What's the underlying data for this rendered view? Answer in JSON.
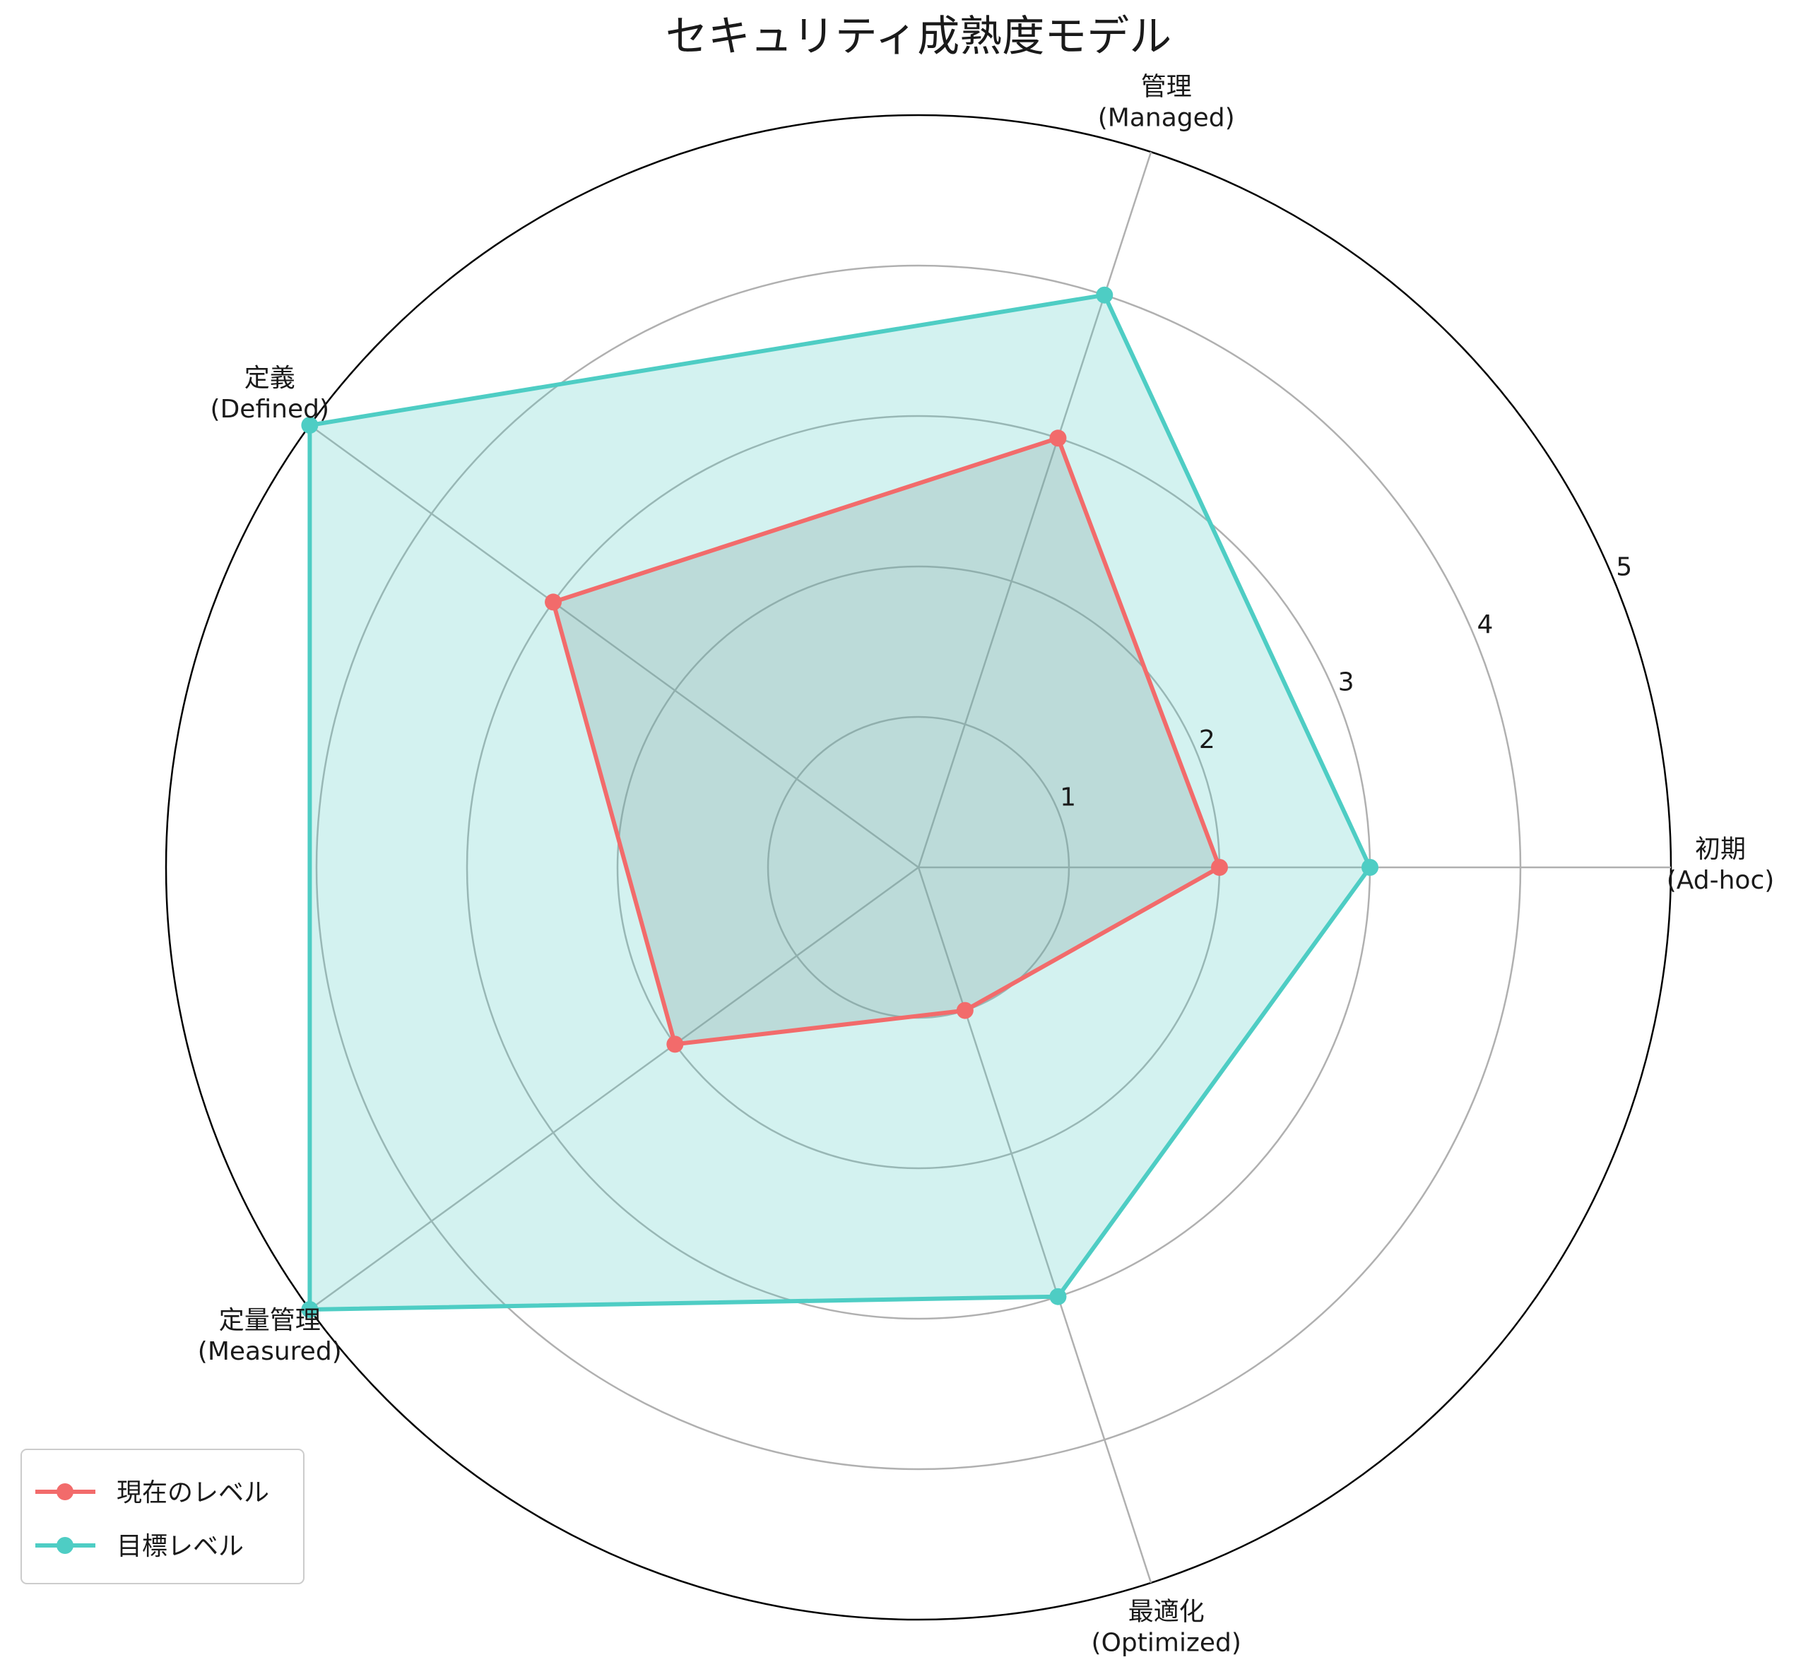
{
  "chart_data": {
    "type": "radar",
    "title": "セキュリティ成熟度モデル",
    "categories": [
      [
        "初期",
        "(Ad-hoc)"
      ],
      [
        "管理",
        "(Managed)"
      ],
      [
        "定義",
        "(Defined)"
      ],
      [
        "定量管理",
        "(Measured)"
      ],
      [
        "最適化",
        "(Optimized)"
      ]
    ],
    "rlim": [
      0,
      5
    ],
    "rticks": [
      "1",
      "2",
      "3",
      "4",
      "5"
    ],
    "series": [
      {
        "name": "現在のレベル",
        "values": [
          2,
          3,
          3,
          2,
          1
        ],
        "color": "#f26b6b",
        "fill": "#888888"
      },
      {
        "name": "目標レベル",
        "values": [
          3,
          4,
          5,
          5,
          3
        ],
        "color": "#4ecdc4",
        "fill": "#4ecdc4"
      }
    ],
    "legend_position": "lower-left",
    "grid": true
  }
}
